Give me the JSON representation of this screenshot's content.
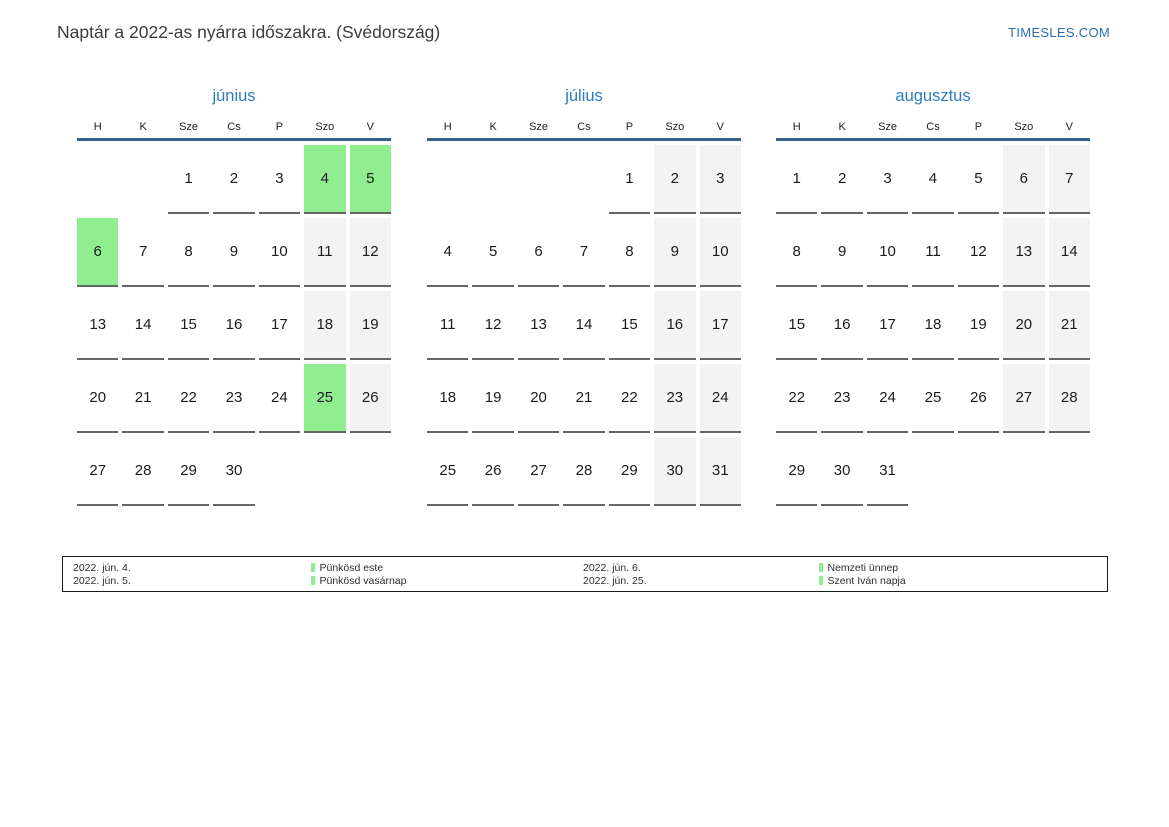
{
  "header": {
    "title": "Naptár a 2022-as nyárra időszakra. (Svédország)",
    "brand": "TIMESLES.COM"
  },
  "colors": {
    "holiday_green": "#90ee90",
    "weekend_gray": "#f3f3f3",
    "month_title_blue": "#2e7cc0",
    "header_line_blue": "#33618d",
    "brand_blue": "#2a6db5"
  },
  "weekdays": [
    "H",
    "K",
    "Sze",
    "Cs",
    "P",
    "Szo",
    "V"
  ],
  "months": [
    {
      "id": "june",
      "name": "június",
      "holidays": [
        4,
        5,
        6,
        25
      ],
      "weeks": [
        [
          "",
          "",
          1,
          2,
          3,
          4,
          5
        ],
        [
          6,
          7,
          8,
          9,
          10,
          11,
          12
        ],
        [
          13,
          14,
          15,
          16,
          17,
          18,
          19
        ],
        [
          20,
          21,
          22,
          23,
          24,
          25,
          26
        ],
        [
          27,
          28,
          29,
          30,
          "",
          "",
          ""
        ]
      ]
    },
    {
      "id": "july",
      "name": "július",
      "holidays": [],
      "weeks": [
        [
          "",
          "",
          "",
          "",
          1,
          2,
          3
        ],
        [
          4,
          5,
          6,
          7,
          8,
          9,
          10
        ],
        [
          11,
          12,
          13,
          14,
          15,
          16,
          17
        ],
        [
          18,
          19,
          20,
          21,
          22,
          23,
          24
        ],
        [
          25,
          26,
          27,
          28,
          29,
          30,
          31
        ]
      ]
    },
    {
      "id": "august",
      "name": "augusztus",
      "holidays": [],
      "weeks": [
        [
          1,
          2,
          3,
          4,
          5,
          6,
          7
        ],
        [
          8,
          9,
          10,
          11,
          12,
          13,
          14
        ],
        [
          15,
          16,
          17,
          18,
          19,
          20,
          21
        ],
        [
          22,
          23,
          24,
          25,
          26,
          27,
          28
        ],
        [
          29,
          30,
          31,
          "",
          "",
          "",
          ""
        ]
      ]
    }
  ],
  "legend": {
    "entries": [
      {
        "date": "2022. jún. 4.",
        "name": "Pünkösd este"
      },
      {
        "date": "2022. jún. 5.",
        "name": "Pünkösd vasárnap"
      },
      {
        "date": "2022. jún. 6.",
        "name": "Nemzeti ünnep"
      },
      {
        "date": "2022. jún. 25.",
        "name": "Szent Iván napja"
      }
    ]
  }
}
